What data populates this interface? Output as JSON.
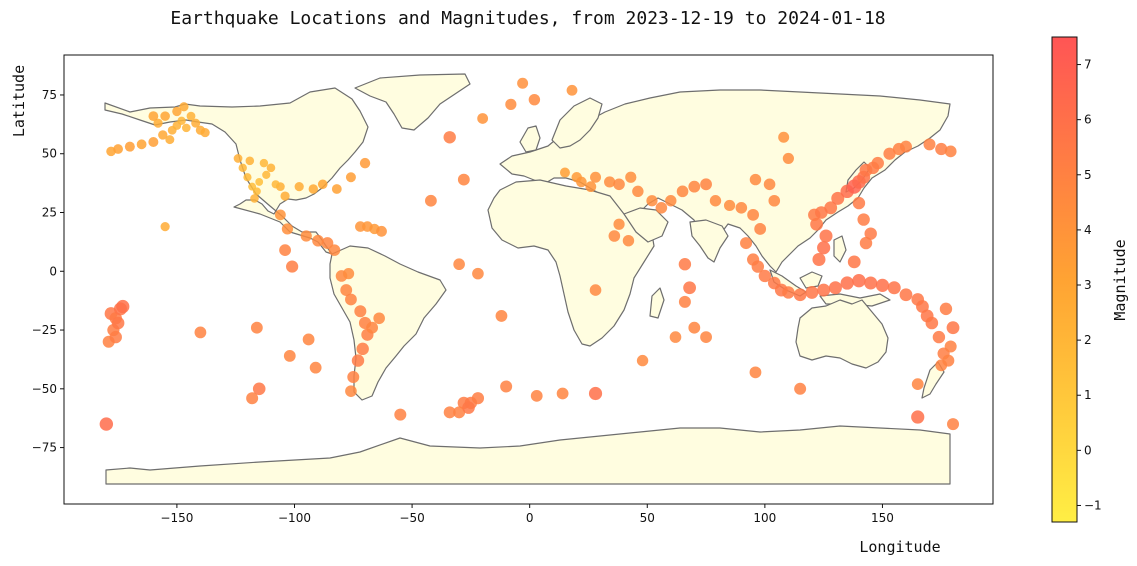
{
  "chart_data": {
    "type": "scatter",
    "title": "Earthquake Locations and Magnitudes, from 2023-12-19 to 2024-01-18",
    "xlabel": "Longitude",
    "ylabel": "Latitude",
    "xlim": [
      -198,
      197
    ],
    "ylim": [
      -99,
      92
    ],
    "xticks": [
      -150,
      -100,
      -50,
      0,
      50,
      100,
      150
    ],
    "yticks": [
      -75,
      -50,
      -25,
      0,
      25,
      50,
      75
    ],
    "grid": false,
    "colorbar": {
      "label": "Magnitude",
      "range": [
        -1.3,
        7.5
      ],
      "ticks": [
        -1,
        0,
        1,
        2,
        3,
        4,
        5,
        6,
        7
      ],
      "colors": [
        "#ffee44",
        "#ffa333",
        "#ff5555"
      ]
    },
    "land_color": "#fffde0",
    "border_color": "#6e6e6e",
    "points": [
      [
        -178,
        51,
        3.0
      ],
      [
        -175,
        52,
        3.2
      ],
      [
        -170,
        53,
        3.4
      ],
      [
        -165,
        54,
        3.1
      ],
      [
        -160,
        55,
        3.3
      ],
      [
        -156,
        58,
        2.8
      ],
      [
        -152,
        60,
        2.4
      ],
      [
        -150,
        62,
        2.2
      ],
      [
        -148,
        64,
        2.0
      ],
      [
        -146,
        61,
        2.1
      ],
      [
        -144,
        66,
        2.3
      ],
      [
        -142,
        63,
        2.5
      ],
      [
        -140,
        60,
        2.6
      ],
      [
        -138,
        59,
        2.7
      ],
      [
        -150,
        68,
        2.9
      ],
      [
        -155,
        66,
        3.0
      ],
      [
        -158,
        63,
        2.6
      ],
      [
        -153,
        56,
        2.5
      ],
      [
        -147,
        70,
        2.7
      ],
      [
        -160,
        66,
        3.1
      ],
      [
        -122,
        44,
        2.0
      ],
      [
        -120,
        40,
        1.8
      ],
      [
        -118,
        36,
        1.6
      ],
      [
        -116,
        34,
        1.7
      ],
      [
        -115,
        38,
        1.5
      ],
      [
        -112,
        41,
        1.9
      ],
      [
        -110,
        44,
        2.2
      ],
      [
        -106,
        36,
        2.4
      ],
      [
        -98,
        36,
        2.6
      ],
      [
        -92,
        35,
        2.8
      ],
      [
        -88,
        37,
        3.0
      ],
      [
        -82,
        35,
        3.2
      ],
      [
        -76,
        40,
        3.4
      ],
      [
        -70,
        46,
        3.6
      ],
      [
        -124,
        48,
        2.4
      ],
      [
        -119,
        47,
        2.2
      ],
      [
        -113,
        46,
        2.0
      ],
      [
        -104,
        32,
        2.6
      ],
      [
        -117,
        31,
        2.2
      ],
      [
        -108,
        37,
        1.9
      ],
      [
        -155,
        19,
        2.6
      ],
      [
        -66,
        18,
        3.6
      ],
      [
        -69,
        19,
        3.8
      ],
      [
        -72,
        19,
        3.9
      ],
      [
        -63,
        17,
        4.0
      ],
      [
        -95,
        15,
        4.4
      ],
      [
        -90,
        13,
        4.6
      ],
      [
        -86,
        12,
        4.8
      ],
      [
        -83,
        9,
        4.6
      ],
      [
        -103,
        18,
        4.3
      ],
      [
        -106,
        24,
        4.0
      ],
      [
        -80,
        -2,
        4.6
      ],
      [
        -78,
        -8,
        4.8
      ],
      [
        -76,
        -12,
        4.9
      ],
      [
        -72,
        -17,
        5.0
      ],
      [
        -70,
        -22,
        5.1
      ],
      [
        -69,
        -27,
        5.2
      ],
      [
        -71,
        -33,
        5.3
      ],
      [
        -73,
        -38,
        5.4
      ],
      [
        -75,
        -45,
        5.0
      ],
      [
        -67,
        -24,
        4.8
      ],
      [
        -64,
        -20,
        4.6
      ],
      [
        -77,
        -1,
        4.4
      ],
      [
        -178,
        -18,
        5.6
      ],
      [
        -176,
        -20,
        5.4
      ],
      [
        -174,
        -16,
        5.8
      ],
      [
        -177,
        -25,
        5.2
      ],
      [
        -179,
        -30,
        5.0
      ],
      [
        -173,
        -15,
        6.0
      ],
      [
        -175,
        -22,
        5.5
      ],
      [
        -180,
        -65,
        6.2
      ],
      [
        -176,
        -28,
        5.3
      ],
      [
        -140,
        -26,
        4.9
      ],
      [
        -116,
        -24,
        4.9
      ],
      [
        -115,
        -50,
        5.5
      ],
      [
        -118,
        -54,
        5.0
      ],
      [
        -102,
        -36,
        4.8
      ],
      [
        -101,
        2,
        5.2
      ],
      [
        -104,
        9,
        4.9
      ],
      [
        -91,
        -41,
        4.8
      ],
      [
        -94,
        -29,
        4.8
      ],
      [
        -76,
        -51,
        4.6
      ],
      [
        -55,
        -61,
        5.0
      ],
      [
        -34,
        -60,
        5.0
      ],
      [
        -28,
        -56,
        5.3
      ],
      [
        -25,
        -56,
        5.4
      ],
      [
        -22,
        -54,
        5.2
      ],
      [
        -30,
        -60,
        5.0
      ],
      [
        -26,
        -58,
        5.5
      ],
      [
        -34,
        57,
        5.3
      ],
      [
        -42,
        30,
        4.8
      ],
      [
        -30,
        3,
        4.7
      ],
      [
        -22,
        -1,
        4.6
      ],
      [
        -28,
        39,
        4.8
      ],
      [
        -12,
        -19,
        4.8
      ],
      [
        -10,
        -49,
        5.0
      ],
      [
        3,
        -53,
        4.9
      ],
      [
        14,
        -52,
        4.8
      ],
      [
        28,
        -52,
        6.0
      ],
      [
        28,
        -8,
        4.6
      ],
      [
        -20,
        65,
        4.0
      ],
      [
        -8,
        71,
        4.4
      ],
      [
        -3,
        80,
        4.2
      ],
      [
        2,
        73,
        4.5
      ],
      [
        18,
        77,
        4.0
      ],
      [
        15,
        42,
        3.4
      ],
      [
        20,
        40,
        3.6
      ],
      [
        22,
        38,
        3.8
      ],
      [
        26,
        36,
        4.0
      ],
      [
        28,
        40,
        4.2
      ],
      [
        34,
        38,
        4.4
      ],
      [
        38,
        37,
        4.6
      ],
      [
        43,
        40,
        4.3
      ],
      [
        46,
        34,
        4.5
      ],
      [
        52,
        30,
        4.4
      ],
      [
        56,
        27,
        4.6
      ],
      [
        60,
        30,
        4.5
      ],
      [
        65,
        34,
        4.7
      ],
      [
        70,
        36,
        4.8
      ],
      [
        75,
        37,
        4.9
      ],
      [
        79,
        30,
        4.5
      ],
      [
        85,
        28,
        4.4
      ],
      [
        90,
        27,
        4.6
      ],
      [
        95,
        24,
        4.8
      ],
      [
        98,
        18,
        4.9
      ],
      [
        104,
        30,
        4.7
      ],
      [
        102,
        37,
        4.6
      ],
      [
        110,
        48,
        4.4
      ],
      [
        108,
        57,
        4.2
      ],
      [
        96,
        39,
        4.5
      ],
      [
        66,
        3,
        5.4
      ],
      [
        68,
        -7,
        5.6
      ],
      [
        66,
        -13,
        5.0
      ],
      [
        70,
        -24,
        4.8
      ],
      [
        75,
        -28,
        4.8
      ],
      [
        62,
        -28,
        4.6
      ],
      [
        48,
        -38,
        4.5
      ],
      [
        96,
        -43,
        4.8
      ],
      [
        115,
        -50,
        5.0
      ],
      [
        36,
        15,
        4.6
      ],
      [
        38,
        20,
        4.4
      ],
      [
        42,
        13,
        4.5
      ],
      [
        92,
        12,
        5.0
      ],
      [
        95,
        5,
        5.2
      ],
      [
        97,
        2,
        5.3
      ],
      [
        100,
        -2,
        5.4
      ],
      [
        104,
        -5,
        5.5
      ],
      [
        107,
        -8,
        5.6
      ],
      [
        110,
        -9,
        5.4
      ],
      [
        115,
        -10,
        5.6
      ],
      [
        120,
        -9,
        5.7
      ],
      [
        125,
        -8,
        5.8
      ],
      [
        130,
        -7,
        5.9
      ],
      [
        135,
        -5,
        6.0
      ],
      [
        140,
        -4,
        6.1
      ],
      [
        145,
        -5,
        5.9
      ],
      [
        150,
        -6,
        6.0
      ],
      [
        155,
        -7,
        5.8
      ],
      [
        160,
        -10,
        5.6
      ],
      [
        123,
        5,
        5.8
      ],
      [
        125,
        10,
        6.0
      ],
      [
        126,
        15,
        5.8
      ],
      [
        122,
        20,
        5.6
      ],
      [
        121,
        24,
        5.4
      ],
      [
        124,
        25,
        5.5
      ],
      [
        128,
        27,
        5.6
      ],
      [
        131,
        31,
        5.8
      ],
      [
        135,
        34,
        6.2
      ],
      [
        138,
        36,
        6.8
      ],
      [
        140,
        38,
        6.4
      ],
      [
        142,
        40,
        5.9
      ],
      [
        143,
        43,
        5.6
      ],
      [
        146,
        44,
        5.4
      ],
      [
        148,
        46,
        5.3
      ],
      [
        153,
        50,
        5.2
      ],
      [
        157,
        52,
        5.1
      ],
      [
        160,
        53,
        5.0
      ],
      [
        140,
        29,
        5.4
      ],
      [
        142,
        22,
        5.3
      ],
      [
        145,
        16,
        5.4
      ],
      [
        143,
        12,
        5.3
      ],
      [
        138,
        4,
        5.6
      ],
      [
        165,
        -12,
        5.5
      ],
      [
        167,
        -15,
        5.6
      ],
      [
        169,
        -19,
        5.7
      ],
      [
        171,
        -22,
        5.5
      ],
      [
        174,
        -28,
        5.4
      ],
      [
        176,
        -35,
        5.2
      ],
      [
        178,
        -38,
        5.0
      ],
      [
        180,
        -24,
        5.6
      ],
      [
        179,
        -32,
        5.0
      ],
      [
        175,
        -40,
        4.9
      ],
      [
        177,
        -16,
        5.3
      ],
      [
        165,
        -62,
        6.0
      ],
      [
        165,
        -48,
        4.8
      ],
      [
        180,
        -65,
        5.0
      ],
      [
        170,
        54,
        5.0
      ],
      [
        175,
        52,
        5.2
      ],
      [
        179,
        51,
        4.9
      ]
    ]
  }
}
